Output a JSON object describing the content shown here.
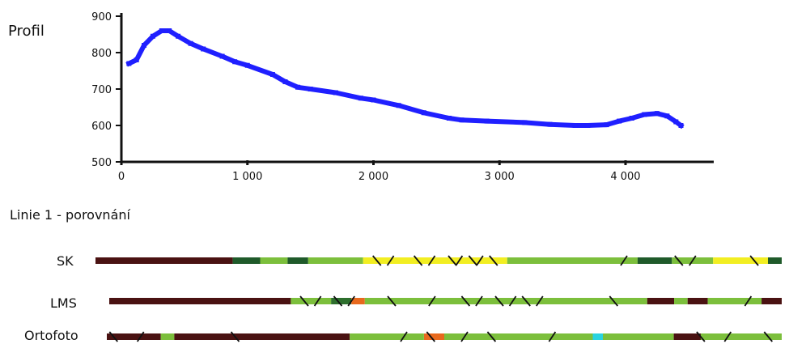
{
  "profile_title": "Profil",
  "comparison_title": "Linie 1 - porovnání",
  "chart_data": {
    "type": "line",
    "title": "Profil",
    "xlabel": "",
    "ylabel": "",
    "xlim": [
      0,
      4700
    ],
    "ylim": [
      500,
      900
    ],
    "x_ticks": [
      0,
      1000,
      2000,
      3000,
      4000
    ],
    "x_tick_labels": [
      "0",
      "1 000",
      "2 000",
      "3 000",
      "4 000"
    ],
    "y_ticks": [
      500,
      600,
      700,
      800,
      900
    ],
    "y_tick_labels": [
      "500",
      "600",
      "700",
      "800",
      "900"
    ],
    "grid": false,
    "series": [
      {
        "name": "",
        "color": "#1f1fff",
        "x": [
          60,
          120,
          180,
          250,
          320,
          380,
          450,
          550,
          650,
          800,
          900,
          1000,
          1200,
          1300,
          1400,
          1500,
          1700,
          1900,
          2000,
          2200,
          2400,
          2600,
          2700,
          2900,
          3200,
          3400,
          3600,
          3700,
          3850,
          3950,
          4050,
          4150,
          4250,
          4330,
          4400,
          4440
        ],
        "y": [
          770,
          780,
          820,
          845,
          860,
          860,
          845,
          825,
          810,
          790,
          775,
          765,
          740,
          720,
          705,
          700,
          690,
          675,
          670,
          655,
          635,
          620,
          615,
          612,
          608,
          603,
          600,
          600,
          602,
          612,
          620,
          630,
          633,
          626,
          610,
          600
        ]
      }
    ]
  },
  "comparison": {
    "rows": [
      {
        "label": "SK",
        "segments": [
          {
            "from": 0.0,
            "to": 0.2,
            "color": "#4a1212"
          },
          {
            "from": 0.2,
            "to": 0.24,
            "color": "#1f5a2a"
          },
          {
            "from": 0.24,
            "to": 0.28,
            "color": "#7cbf3c"
          },
          {
            "from": 0.28,
            "to": 0.31,
            "color": "#1f5a2a"
          },
          {
            "from": 0.31,
            "to": 0.39,
            "color": "#7cbf3c"
          },
          {
            "from": 0.39,
            "to": 0.6,
            "color": "#f2ee22"
          },
          {
            "from": 0.6,
            "to": 0.79,
            "color": "#7cbf3c"
          },
          {
            "from": 0.79,
            "to": 0.84,
            "color": "#1f5a2a"
          },
          {
            "from": 0.84,
            "to": 0.9,
            "color": "#7cbf3c"
          },
          {
            "from": 0.9,
            "to": 0.98,
            "color": "#f2ee22"
          },
          {
            "from": 0.98,
            "to": 1.0,
            "color": "#1f5a2a"
          }
        ],
        "ticks": [
          0.41,
          0.43,
          0.47,
          0.49,
          0.52,
          0.53,
          0.55,
          0.56,
          0.58,
          0.77,
          0.85,
          0.87,
          0.96
        ]
      },
      {
        "label": "LMS",
        "segments": [
          {
            "from": 0.0,
            "to": 0.27,
            "color": "#4a1212"
          },
          {
            "from": 0.27,
            "to": 0.33,
            "color": "#7cbf3c"
          },
          {
            "from": 0.33,
            "to": 0.36,
            "color": "#2e6f2e"
          },
          {
            "from": 0.36,
            "to": 0.38,
            "color": "#e8691e"
          },
          {
            "from": 0.38,
            "to": 0.8,
            "color": "#7cbf3c"
          },
          {
            "from": 0.8,
            "to": 0.84,
            "color": "#4a1212"
          },
          {
            "from": 0.84,
            "to": 0.86,
            "color": "#7cbf3c"
          },
          {
            "from": 0.86,
            "to": 0.89,
            "color": "#4a1212"
          },
          {
            "from": 0.89,
            "to": 0.97,
            "color": "#7cbf3c"
          },
          {
            "from": 0.97,
            "to": 1.0,
            "color": "#4a1212"
          }
        ],
        "ticks": [
          0.29,
          0.31,
          0.34,
          0.36,
          0.42,
          0.48,
          0.53,
          0.55,
          0.58,
          0.6,
          0.62,
          0.64,
          0.75,
          0.95
        ]
      },
      {
        "label": "Ortofoto",
        "segments": [
          {
            "from": 0.0,
            "to": 0.08,
            "color": "#4a1212"
          },
          {
            "from": 0.08,
            "to": 0.1,
            "color": "#7cbf3c"
          },
          {
            "from": 0.1,
            "to": 0.36,
            "color": "#4a1212"
          },
          {
            "from": 0.36,
            "to": 0.47,
            "color": "#7cbf3c"
          },
          {
            "from": 0.47,
            "to": 0.5,
            "color": "#e8691e"
          },
          {
            "from": 0.5,
            "to": 0.72,
            "color": "#7cbf3c"
          },
          {
            "from": 0.72,
            "to": 0.735,
            "color": "#29d3e0"
          },
          {
            "from": 0.735,
            "to": 0.84,
            "color": "#7cbf3c"
          },
          {
            "from": 0.84,
            "to": 0.88,
            "color": "#4a1212"
          },
          {
            "from": 0.88,
            "to": 1.0,
            "color": "#7cbf3c"
          }
        ],
        "ticks": [
          0.01,
          0.05,
          0.19,
          0.44,
          0.48,
          0.53,
          0.57,
          0.66,
          0.88,
          0.92,
          0.98
        ]
      }
    ]
  }
}
